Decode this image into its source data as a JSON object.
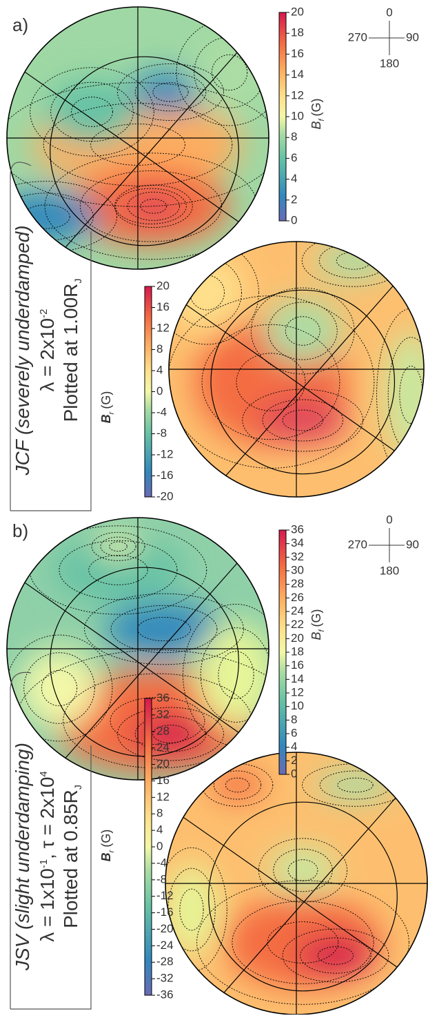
{
  "panels": [
    {
      "label": "a)",
      "caption": {
        "model": "JCF (severely underdamped)",
        "param": [
          {
            "text": "λ = 2x10",
            "sup": "-2"
          }
        ],
        "plotted": {
          "text": "Plotted at 1.00R",
          "sub": "J"
        }
      },
      "compass": {
        "top": "0",
        "right": "90",
        "bottom": "180",
        "left": "270"
      },
      "colorbars": [
        {
          "symbol": "B",
          "subscript": "f",
          "unit": "(G)",
          "lim": [
            0,
            20
          ],
          "ticks": [
            0,
            2,
            4,
            6,
            8,
            10,
            12,
            14,
            16,
            18,
            20
          ]
        },
        {
          "symbol": "B",
          "subscript": "r",
          "unit": "(G)",
          "lim": [
            -20,
            20
          ],
          "ticks": [
            -20,
            -16,
            -12,
            -8,
            -4,
            0,
            4,
            8,
            12,
            16,
            20
          ]
        }
      ]
    },
    {
      "label": "b)",
      "caption": {
        "model": "JSV (slight underdamping)",
        "param": [
          {
            "text": "λ = 1x10",
            "sup": "-1"
          },
          {
            "text": ", τ = 2x10",
            "sup": "4"
          }
        ],
        "plotted": {
          "text": "Plotted at 0.85R",
          "sub": "J"
        }
      },
      "compass": {
        "top": "0",
        "right": "90",
        "bottom": "180",
        "left": "270"
      },
      "colorbars": [
        {
          "symbol": "B",
          "subscript": "f",
          "unit": "(G)",
          "lim": [
            0,
            36
          ],
          "ticks": [
            0,
            2,
            4,
            6,
            8,
            10,
            12,
            14,
            16,
            18,
            20,
            22,
            24,
            26,
            28,
            30,
            32,
            34,
            36
          ]
        },
        {
          "symbol": "B",
          "subscript": "r",
          "unit": "(G)",
          "lim": [
            -36,
            36
          ],
          "ticks": [
            -36,
            -32,
            -28,
            -24,
            -20,
            -16,
            -12,
            -8,
            -4,
            0,
            4,
            8,
            12,
            16,
            20,
            24,
            28,
            32,
            36
          ]
        }
      ]
    }
  ]
}
